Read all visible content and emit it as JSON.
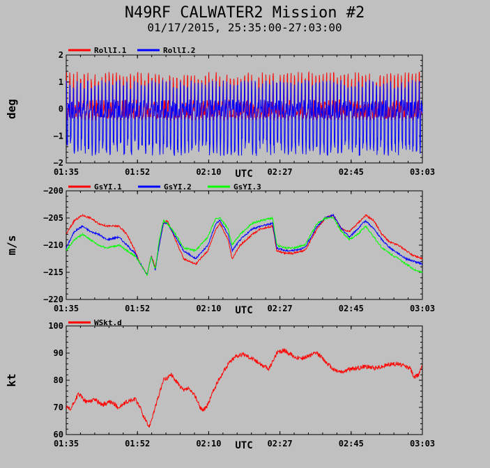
{
  "title": "N49RF CALWATER2 Mission #2",
  "subtitle": "01/17/2015, 25:35:00-27:03:00",
  "chart_data": [
    {
      "type": "line",
      "ylabel": "deg",
      "xlabel": "UTC",
      "ylim": [
        -2,
        2
      ],
      "yticks": [
        "2",
        "1",
        "0",
        "−1",
        "−2"
      ],
      "xticks": [
        "01:35",
        "01:52",
        "02:10",
        "02:27",
        "02:45",
        "03:03"
      ],
      "x_range_min": [
        95,
        183
      ],
      "series": [
        {
          "name": "RollI.1",
          "color": "#ff0000",
          "style": "oscillation",
          "center": 0.0,
          "upper": 1.15,
          "lower": -0.35
        },
        {
          "name": "RollI.2",
          "color": "#0000ff",
          "style": "oscillation",
          "center": 0.0,
          "upper": 0.9,
          "lower": -1.45
        }
      ]
    },
    {
      "type": "line",
      "ylabel": "m/s",
      "xlabel": "UTC",
      "ylim": [
        -220,
        -200
      ],
      "yticks": [
        "−200",
        "−205",
        "−210",
        "−215",
        "−220"
      ],
      "xticks": [
        "01:35",
        "01:52",
        "02:10",
        "02:27",
        "02:45",
        "03:03"
      ],
      "x_range_min": [
        95,
        183
      ],
      "series": [
        {
          "name": "GsYI.1",
          "color": "#ff0000",
          "x": [
            95,
            97,
            99,
            101,
            103,
            105,
            108,
            110,
            112,
            113,
            115,
            116,
            117,
            118,
            119,
            120,
            122,
            124,
            127,
            130,
            132,
            133,
            135,
            136,
            138,
            141,
            143,
            146,
            147,
            149,
            151,
            154,
            157,
            159,
            161,
            163,
            165,
            167,
            169,
            171,
            173,
            175,
            177,
            179,
            181,
            183
          ],
          "y": [
            -208,
            -205.5,
            -204.5,
            -205,
            -206,
            -206.5,
            -206.5,
            -208,
            -211,
            -213,
            -215.5,
            -212,
            -214,
            -210,
            -206,
            -205.5,
            -209,
            -212.5,
            -213.5,
            -211,
            -207,
            -206,
            -209,
            -212.5,
            -210,
            -208,
            -207,
            -206.5,
            -211,
            -211.5,
            -211.5,
            -211,
            -207,
            -205,
            -204.5,
            -207,
            -207.5,
            -206,
            -204.5,
            -205.5,
            -208,
            -209.5,
            -210,
            -211,
            -212,
            -212.5
          ]
        },
        {
          "name": "GsYI.2",
          "color": "#0000ff",
          "x": [
            95,
            97,
            99,
            101,
            103,
            105,
            108,
            110,
            112,
            113,
            115,
            116,
            117,
            118,
            119,
            120,
            122,
            124,
            127,
            130,
            132,
            133,
            135,
            136,
            138,
            141,
            143,
            146,
            147,
            149,
            151,
            154,
            157,
            159,
            161,
            163,
            165,
            167,
            169,
            171,
            173,
            175,
            177,
            179,
            181,
            183
          ],
          "y": [
            -210.5,
            -207.5,
            -206.5,
            -207.5,
            -208,
            -209,
            -208.5,
            -210,
            -211.5,
            -213,
            -215.5,
            -212,
            -214.5,
            -210,
            -206,
            -206,
            -208.5,
            -211,
            -212.5,
            -210,
            -206,
            -205.5,
            -208,
            -211,
            -209,
            -207,
            -206.5,
            -206,
            -210.5,
            -211,
            -211,
            -210.5,
            -206.5,
            -205,
            -204.5,
            -207,
            -208.5,
            -207,
            -205.5,
            -207,
            -209,
            -210.5,
            -211.5,
            -212.5,
            -213,
            -213.5
          ]
        },
        {
          "name": "GsYI.3",
          "color": "#00ff00",
          "x": [
            95,
            97,
            99,
            101,
            103,
            105,
            108,
            110,
            112,
            113,
            115,
            116,
            117,
            118,
            119,
            120,
            122,
            124,
            127,
            130,
            132,
            133,
            135,
            136,
            138,
            141,
            143,
            146,
            147,
            149,
            151,
            154,
            157,
            159,
            161,
            163,
            165,
            167,
            169,
            171,
            173,
            175,
            177,
            179,
            181,
            183
          ],
          "y": [
            -211,
            -209,
            -208,
            -209,
            -210,
            -210.5,
            -210,
            -211,
            -212,
            -213,
            -215.5,
            -212,
            -214.5,
            -209,
            -205.5,
            -206,
            -208,
            -210.5,
            -211,
            -208.5,
            -205,
            -205,
            -207,
            -210,
            -208,
            -206,
            -205.5,
            -205,
            -210,
            -210.5,
            -210.5,
            -210,
            -206,
            -205,
            -205,
            -207.5,
            -209,
            -208,
            -206.5,
            -208.5,
            -210.5,
            -211.5,
            -212.5,
            -213.5,
            -214.5,
            -215
          ]
        }
      ]
    },
    {
      "type": "line",
      "ylabel": "kt",
      "xlabel": "UTC",
      "ylim": [
        60,
        100
      ],
      "yticks": [
        "100",
        "90",
        "80",
        "70",
        "60"
      ],
      "xticks": [
        "01:35",
        "01:52",
        "02:10",
        "02:27",
        "02:45",
        "03:03"
      ],
      "x_range_min": [
        95,
        183
      ],
      "series": [
        {
          "name": "WSkt.d",
          "color": "#ff0000",
          "x": [
            95,
            96,
            98,
            100,
            102,
            104,
            106,
            108,
            110,
            112,
            113,
            114,
            115,
            115.5,
            117,
            119,
            121,
            123,
            124,
            125,
            127,
            128,
            129,
            130,
            131,
            133,
            135,
            137,
            139,
            141,
            143,
            145,
            147,
            149,
            151,
            153,
            155,
            157,
            159,
            161,
            163,
            165,
            167,
            169,
            171,
            173,
            175,
            177,
            179,
            180,
            181,
            182,
            183
          ],
          "y": [
            70,
            69,
            75,
            72,
            73,
            71,
            72,
            70,
            72,
            73,
            71,
            67,
            64,
            63,
            70,
            80,
            82,
            78,
            76,
            77,
            74,
            70,
            69,
            71,
            75,
            81,
            86,
            89,
            89.5,
            88,
            86,
            84,
            90,
            91,
            89,
            88,
            89,
            90,
            87,
            84,
            83,
            84,
            84.5,
            85,
            84.5,
            85,
            86,
            86,
            85,
            84.5,
            81,
            82,
            86
          ]
        }
      ]
    }
  ]
}
